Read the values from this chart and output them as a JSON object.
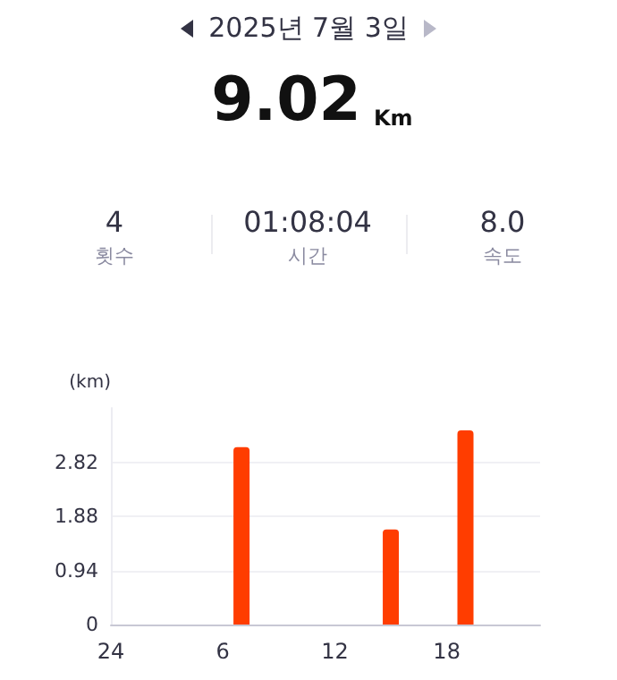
{
  "chart_data": {
    "type": "bar",
    "title": "2025년 7월 3일",
    "ylabel": "(km)",
    "annotations": [
      "9.02",
      "Km",
      "4",
      "횟수",
      "01:08:04",
      "시간",
      "8.0",
      "속도"
    ],
    "categories": [
      "24",
      null,
      null,
      null,
      null,
      null,
      "6",
      null,
      null,
      null,
      null,
      null,
      "12",
      null,
      null,
      null,
      null,
      null,
      "18",
      null,
      null,
      null,
      null,
      null
    ],
    "values": [
      null,
      null,
      null,
      null,
      null,
      null,
      null,
      3.08,
      null,
      null,
      null,
      null,
      null,
      null,
      null,
      1.65,
      null,
      null,
      null,
      3.37,
      null,
      null,
      null,
      null
    ],
    "color": "#ff3d00",
    "ylim": [
      0,
      3.76
    ],
    "yticks": [
      0,
      0.94,
      1.88,
      2.82
    ],
    "grid": "y"
  }
}
